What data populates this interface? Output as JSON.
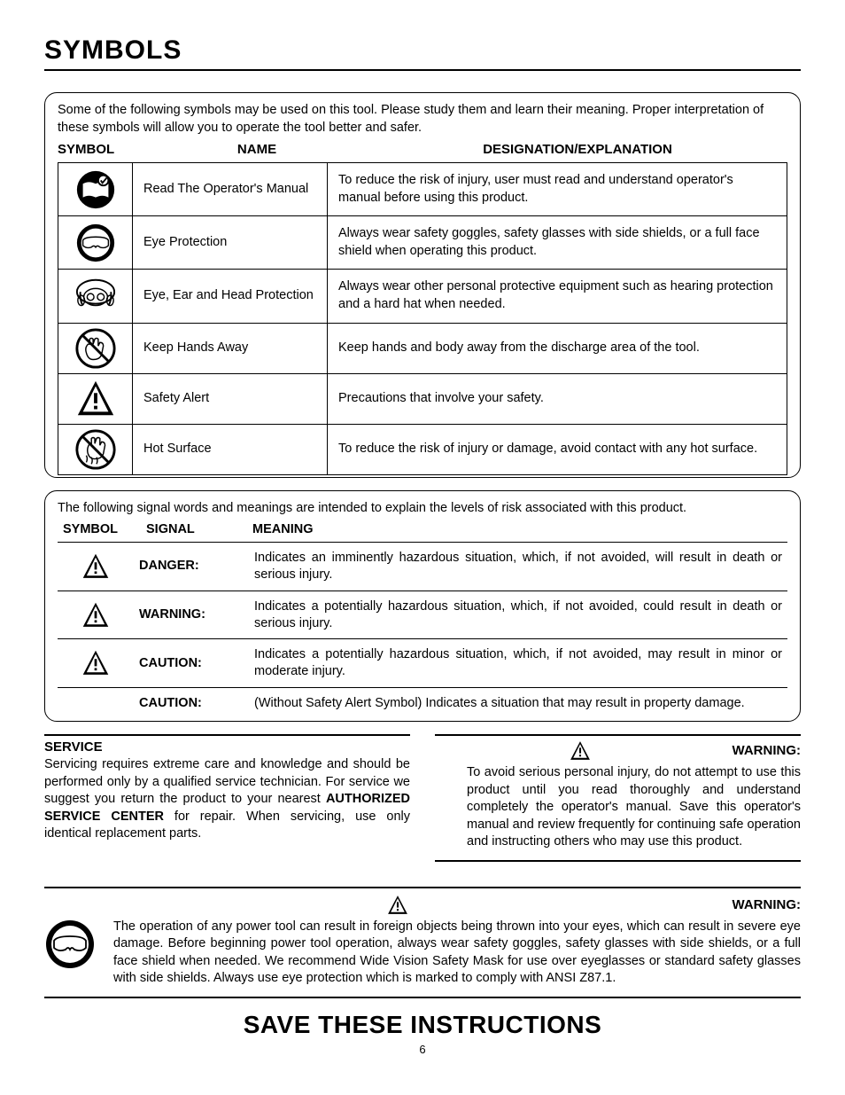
{
  "page_title": "SYMBOLS",
  "intro1": "Some of the following symbols may be used on this tool. Please study them and learn their meaning. Proper interpretation of these symbols will allow you to operate the tool better and safer.",
  "headers1": {
    "symbol": "SYMBOL",
    "name": "NAME",
    "desig": "DESIGNATION/EXPLANATION"
  },
  "rows1": [
    {
      "icon": "manual",
      "name": "Read The Operator's Manual",
      "desc": "To reduce the risk of injury, user must read and understand operator's manual before using this product."
    },
    {
      "icon": "goggles",
      "name": "Eye Protection",
      "desc": "Always wear safety goggles, safety glasses with side shields, or a full face shield when operating this product."
    },
    {
      "icon": "eye-ear-head",
      "name": "Eye, Ear and Head Protection",
      "desc": "Always wear other personal protective equipment such as hearing protection and a hard hat when needed."
    },
    {
      "icon": "hands-away",
      "name": "Keep Hands Away",
      "desc": "Keep hands and body away from the discharge area of the tool."
    },
    {
      "icon": "alert",
      "name": "Safety Alert",
      "desc": "Precautions that involve your safety."
    },
    {
      "icon": "hot-surface",
      "name": "Hot Surface",
      "desc": "To reduce the risk of injury or damage, avoid contact with any hot surface."
    }
  ],
  "intro2": "The following signal words and meanings are intended to explain the levels of risk associated with this product.",
  "headers2": {
    "symbol": "SYMBOL",
    "signal": "SIGNAL",
    "meaning": "MEANING"
  },
  "rows2": [
    {
      "icon": "alert",
      "signal": "DANGER:",
      "meaning": "Indicates an imminently hazardous situation, which, if not avoided, will result in death or serious injury."
    },
    {
      "icon": "alert",
      "signal": "WARNING:",
      "meaning": "Indicates a potentially hazardous situation, which, if not avoided, could result in death or serious injury."
    },
    {
      "icon": "alert",
      "signal": "CAUTION:",
      "meaning": "Indicates a potentially hazardous situation, which, if not avoided, may result in minor or moderate injury."
    },
    {
      "icon": "",
      "signal": "CAUTION:",
      "meaning": "(Without Safety Alert Symbol) Indicates a situation that may result in property damage."
    }
  ],
  "service": {
    "head": "SERVICE",
    "body_pre": "Servicing requires extreme care and knowledge and should be performed only by a qualified service technician. For service we suggest you return the product to your nearest ",
    "body_bold": "AUTHORIZED SERVICE CENTER",
    "body_post": " for repair. When servicing, use only identical replacement parts."
  },
  "warn_small": {
    "head": "WARNING:",
    "body": "To avoid serious personal injury, do not attempt to use this product until you read thoroughly and understand completely the operator's manual. Save this operator's manual and review frequently for continuing safe operation and instructing others who may use this product."
  },
  "warn_full": {
    "head": "WARNING:",
    "body": "The operation of any power tool can result in foreign objects being thrown into your eyes, which can result in severe eye damage. Before beginning power tool operation, always wear safety goggles, safety glasses with side shields, or a full face shield when needed. We recommend Wide Vision Safety Mask for use over eyeglasses or standard safety glasses with side shields. Always use eye protection which is marked to comply with ANSI Z87.1."
  },
  "save": "SAVE THESE INSTRUCTIONS",
  "pagenum": "6",
  "colors": {
    "text": "#000000",
    "bg": "#ffffff"
  }
}
